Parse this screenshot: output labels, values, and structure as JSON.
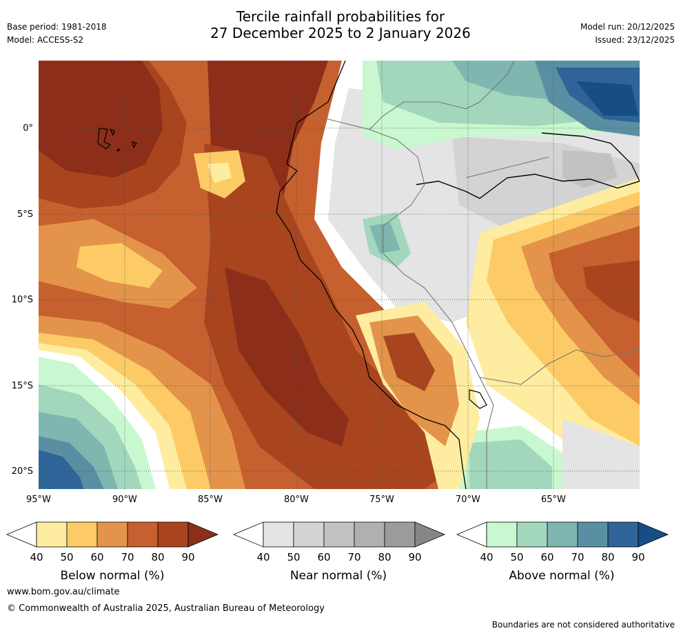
{
  "header": {
    "title_line1": "Tercile rainfall probabilities for",
    "title_line2": "27 December 2025 to 2 January 2026",
    "base_period": "Base period: 1981-2018",
    "model": "Model: ACCESS-S2",
    "model_run": "Model run: 20/12/2025",
    "issued": "Issued: 23/12/2025"
  },
  "map": {
    "lat_labels": [
      "0°",
      "5°S",
      "10°S",
      "15°S",
      "20°S"
    ],
    "lon_labels": [
      "95°W",
      "90°W",
      "85°W",
      "80°W",
      "75°W",
      "70°W",
      "65°W"
    ]
  },
  "colorbars": [
    {
      "label": "Below normal (%)",
      "ticks": [
        "40",
        "50",
        "60",
        "70",
        "80",
        "90"
      ],
      "colors": [
        "#ffffff",
        "#feeda0",
        "#fdcb66",
        "#e3944a",
        "#c6602f",
        "#a8451f",
        "#8c2e19"
      ]
    },
    {
      "label": "Near normal (%)",
      "ticks": [
        "40",
        "50",
        "60",
        "70",
        "80",
        "90"
      ],
      "colors": [
        "#ffffff",
        "#e4e4e4",
        "#d3d3d3",
        "#c2c2c2",
        "#b0b0b0",
        "#9c9c9c",
        "#868686"
      ]
    },
    {
      "label": "Above normal (%)",
      "ticks": [
        "40",
        "50",
        "60",
        "70",
        "80",
        "90"
      ],
      "colors": [
        "#ffffff",
        "#c9f7cf",
        "#a2d7bd",
        "#7fb6b0",
        "#5a8fa3",
        "#2e6497",
        "#164d84"
      ]
    }
  ],
  "footer": {
    "website": "www.bom.gov.au/climate",
    "copyright": "© Commonwealth of Australia 2025, Australian Bureau of Meteorology",
    "disclaimer": "Boundaries are not considered authoritative"
  }
}
